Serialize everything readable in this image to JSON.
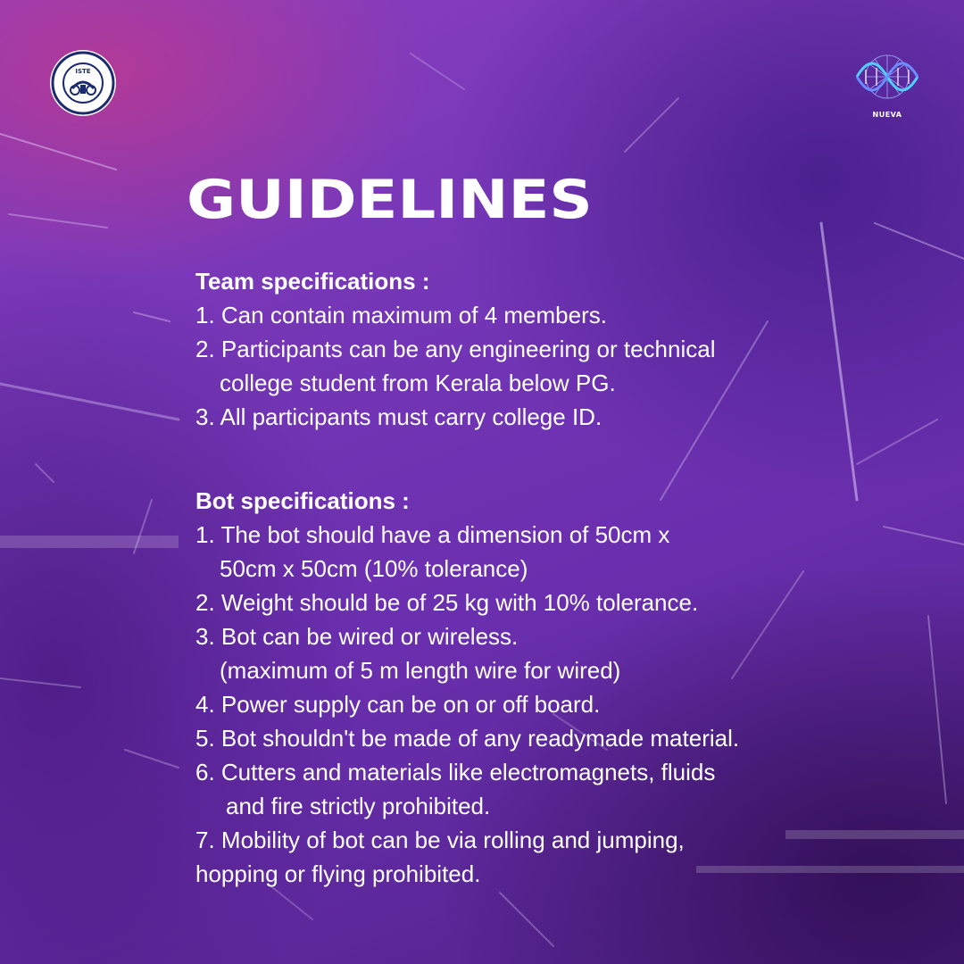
{
  "brand": {
    "left_logo_ring_text": "INDIAN SOCIETY FOR TECHNICAL EDUCATION",
    "left_logo_center": "ISTE",
    "right_logo_label": "NUEVA",
    "left_logo_icon": "iste-seal-icon",
    "right_logo_icon": "dna-helix-globe-icon"
  },
  "title": "GUIDELINES",
  "team": {
    "heading": "Team specifications :",
    "items": [
      "1. Can contain maximum of 4 members.",
      "2. Participants can be any engineering or technical",
      "college student from Kerala below PG.",
      "3. All participants must carry college ID."
    ]
  },
  "bot": {
    "heading": "Bot specifications :",
    "items": [
      "1. The bot should have a dimension of 50cm x",
      "50cm x 50cm (10% tolerance)",
      "2. Weight should be of 25 kg with 10% tolerance.",
      "3. Bot can be wired or wireless.",
      "(maximum of 5 m length wire for wired)",
      "4. Power supply can be on or off board.",
      "5. Bot shouldn't be made of any readymade material.",
      "6. Cutters and materials like electromagnets, fluids",
      "and fire strictly prohibited.",
      "7. Mobility of bot can be via rolling and jumping,",
      "hopping or flying prohibited."
    ]
  },
  "colors": {
    "background": "#7436b6",
    "text": "#ffffff",
    "accent_pink": "#d63678",
    "logo_navy": "#1c2a6e"
  }
}
